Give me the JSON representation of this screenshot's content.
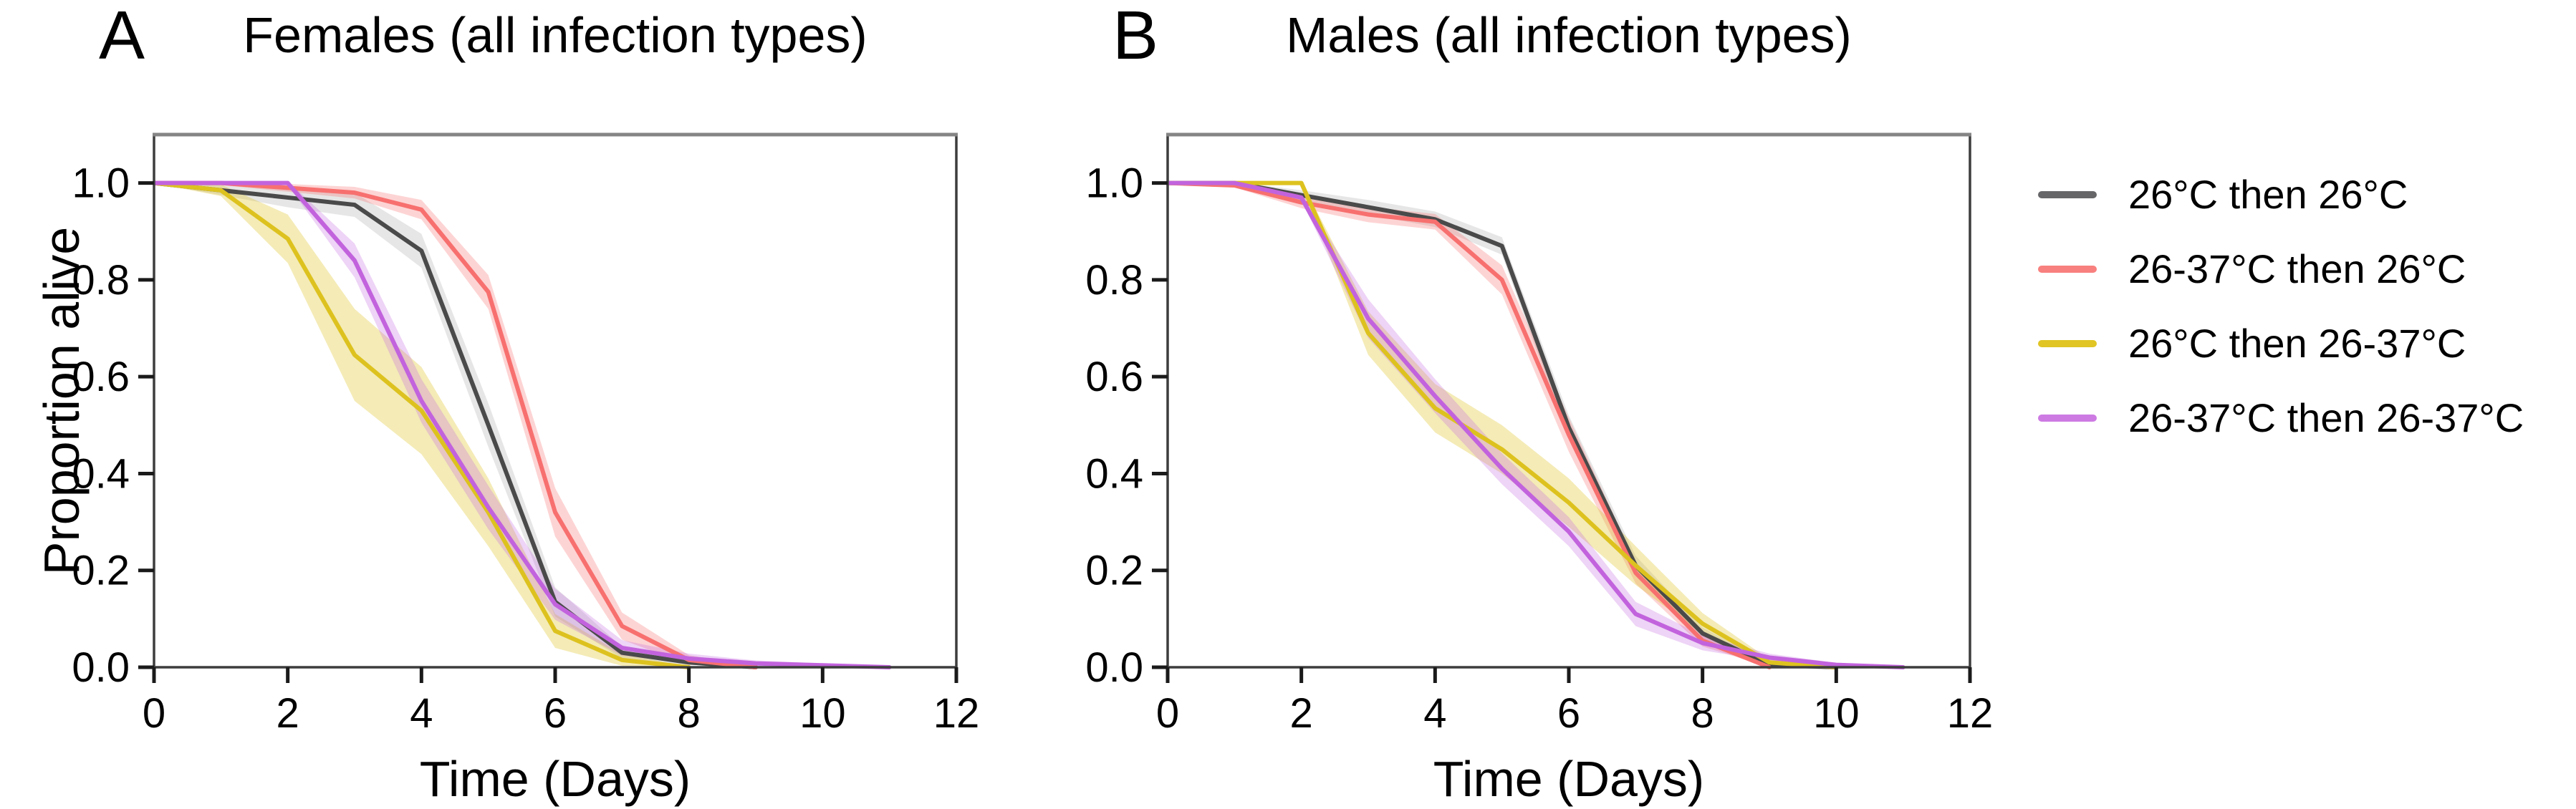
{
  "figure": {
    "panels": [
      {
        "letter": "A",
        "title": "Females (all infection types)",
        "xlabel": "Time (Days)",
        "ylabel": "Proportion alive"
      },
      {
        "letter": "B",
        "title": "Males (all infection types)",
        "xlabel": "Time (Days)",
        "ylabel": ""
      }
    ],
    "colors": {
      "frame": "#3d3d3d",
      "frame_top": "#858585",
      "tick": "#1a1a1a",
      "background": "#ffffff"
    }
  },
  "legend": {
    "position": "right-outside",
    "entries": [
      {
        "label": "26°C then 26°C",
        "color": "#666669"
      },
      {
        "label": "26-37°C then 26°C",
        "color": "#f8807e"
      },
      {
        "label": "26°C then 26-37°C",
        "color": "#e0c525"
      },
      {
        "label": "26-37°C then 26-37°C",
        "color": "#cd7ae3"
      }
    ]
  },
  "chart_data": [
    {
      "type": "line",
      "panel": "A",
      "title": "Females (all infection types)",
      "xlabel": "Time (Days)",
      "ylabel": "Proportion alive",
      "xlim": [
        0,
        12
      ],
      "ylim": [
        0,
        1.1
      ],
      "xticks": [
        0,
        2,
        4,
        6,
        8,
        10,
        12
      ],
      "yticks": [
        0.0,
        0.2,
        0.4,
        0.6,
        0.8,
        1.0
      ],
      "grid": false,
      "band_style": "confidence-interval shaded ribbon around each line",
      "series": [
        {
          "name": "26°C then 26°C",
          "color": "#4a4a4a",
          "band_color": "rgba(130,130,130,0.20)",
          "x": [
            0,
            1,
            2,
            3,
            4,
            5,
            6,
            7,
            8,
            9
          ],
          "y": [
            1.0,
            0.985,
            0.97,
            0.955,
            0.86,
            0.5,
            0.135,
            0.03,
            0.01,
            0.0
          ],
          "ci": [
            0,
            0.01,
            0.02,
            0.025,
            0.035,
            0.045,
            0.03,
            0.012,
            0.005,
            0.002
          ]
        },
        {
          "name": "26-37°C then 26°C",
          "color": "#f7706f",
          "band_color": "rgba(247,112,111,0.30)",
          "x": [
            0,
            1,
            2,
            3,
            4,
            5,
            6,
            7,
            8,
            9
          ],
          "y": [
            1.0,
            1.0,
            0.99,
            0.98,
            0.945,
            0.775,
            0.32,
            0.085,
            0.015,
            0.0
          ],
          "ci": [
            0,
            0.004,
            0.008,
            0.012,
            0.02,
            0.035,
            0.05,
            0.028,
            0.01,
            0.002
          ]
        },
        {
          "name": "26°C then 26-37°C",
          "color": "#ddc21f",
          "band_color": "rgba(221,194,31,0.32)",
          "x": [
            0,
            1,
            2,
            3,
            4,
            5,
            6,
            7,
            8
          ],
          "y": [
            1.0,
            0.985,
            0.885,
            0.645,
            0.53,
            0.32,
            0.075,
            0.015,
            0.0
          ],
          "ci": [
            0,
            0.012,
            0.05,
            0.095,
            0.09,
            0.07,
            0.035,
            0.012,
            0.002
          ]
        },
        {
          "name": "26-37°C then 26-37°C",
          "color": "#c263dd",
          "band_color": "rgba(194,99,221,0.28)",
          "x": [
            0,
            1,
            2,
            3,
            4,
            5,
            6,
            7,
            8,
            9,
            10,
            11
          ],
          "y": [
            1.0,
            1.0,
            1.0,
            0.84,
            0.55,
            0.33,
            0.13,
            0.04,
            0.018,
            0.008,
            0.004,
            0.0
          ],
          "ci": [
            0,
            0,
            0.004,
            0.035,
            0.045,
            0.045,
            0.032,
            0.016,
            0.01,
            0.006,
            0.004,
            0.002
          ]
        }
      ]
    },
    {
      "type": "line",
      "panel": "B",
      "title": "Males (all infection types)",
      "xlabel": "Time (Days)",
      "ylabel": "",
      "xlim": [
        0,
        12
      ],
      "ylim": [
        0,
        1.1
      ],
      "xticks": [
        0,
        2,
        4,
        6,
        8,
        10,
        12
      ],
      "yticks": [
        0.0,
        0.2,
        0.4,
        0.6,
        0.8,
        1.0
      ],
      "grid": false,
      "band_style": "confidence-interval shaded ribbon around each line",
      "series": [
        {
          "name": "26°C then 26°C",
          "color": "#4a4a4a",
          "band_color": "rgba(130,130,130,0.20)",
          "x": [
            0,
            1,
            2,
            3,
            4,
            5,
            6,
            7,
            8,
            9,
            10
          ],
          "y": [
            1.0,
            1.0,
            0.975,
            0.95,
            0.925,
            0.87,
            0.495,
            0.21,
            0.07,
            0.005,
            0.0
          ],
          "ci": [
            0,
            0.002,
            0.01,
            0.015,
            0.016,
            0.018,
            0.025,
            0.02,
            0.012,
            0.004,
            0.002
          ]
        },
        {
          "name": "26-37°C then 26°C",
          "color": "#f7706f",
          "band_color": "rgba(247,112,111,0.30)",
          "x": [
            0,
            1,
            2,
            3,
            4,
            5,
            6,
            7,
            8,
            9
          ],
          "y": [
            1.0,
            0.995,
            0.96,
            0.935,
            0.92,
            0.8,
            0.48,
            0.195,
            0.055,
            0.0
          ],
          "ci": [
            0,
            0.004,
            0.012,
            0.016,
            0.016,
            0.03,
            0.035,
            0.022,
            0.012,
            0.002
          ]
        },
        {
          "name": "26°C then 26-37°C",
          "color": "#ddc21f",
          "band_color": "rgba(221,194,31,0.32)",
          "x": [
            0,
            1,
            2,
            3,
            4,
            5,
            6,
            7,
            8,
            9,
            10
          ],
          "y": [
            1.0,
            1.0,
            1.0,
            0.69,
            0.535,
            0.45,
            0.34,
            0.21,
            0.09,
            0.01,
            0.0
          ],
          "ci": [
            0,
            0,
            0.004,
            0.045,
            0.05,
            0.05,
            0.05,
            0.04,
            0.022,
            0.006,
            0.002
          ]
        },
        {
          "name": "26-37°C then 26-37°C",
          "color": "#c263dd",
          "band_color": "rgba(194,99,221,0.28)",
          "x": [
            0,
            1,
            2,
            3,
            4,
            5,
            6,
            7,
            8,
            9,
            10,
            11
          ],
          "y": [
            1.0,
            1.0,
            0.97,
            0.72,
            0.56,
            0.41,
            0.28,
            0.11,
            0.05,
            0.02,
            0.005,
            0.0
          ],
          "ci": [
            0,
            0,
            0.006,
            0.04,
            0.035,
            0.032,
            0.03,
            0.025,
            0.015,
            0.008,
            0.004,
            0.002
          ]
        }
      ]
    }
  ]
}
